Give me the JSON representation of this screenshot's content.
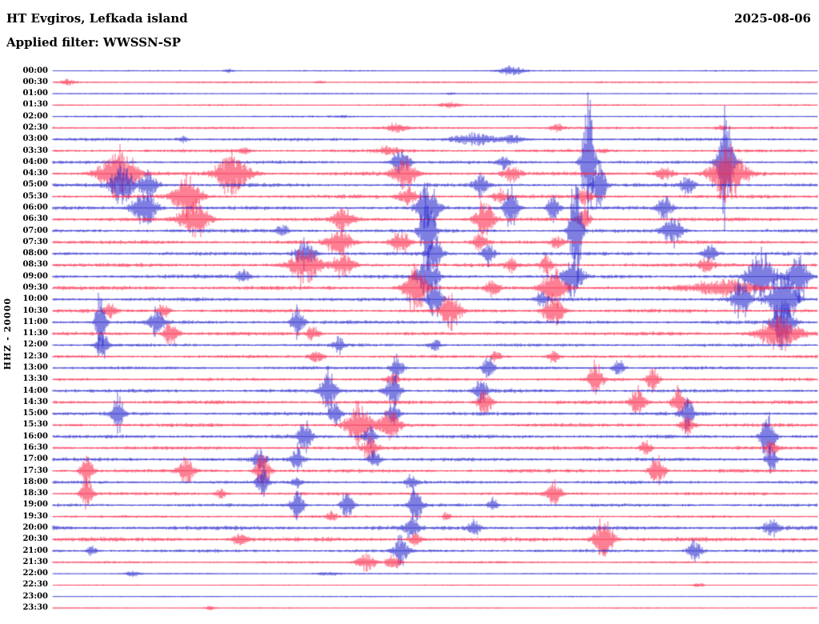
{
  "header": {
    "station": "HT Evgiros, Lefkada island",
    "date": "2025-08-06",
    "filter_label": "Applied filter: WWSSN-SP"
  },
  "axis": {
    "left_label": "HHZ - 20000"
  },
  "chart_data": {
    "type": "line",
    "subtype": "helicorder-seismogram",
    "title": "HT Evgiros, Lefkada island",
    "date": "2025-08-06",
    "filter": "WWSSN-SP",
    "ylabel": "HHZ - 20000",
    "row_interval_minutes": 30,
    "legend": "none",
    "grid": false,
    "colors": {
      "blue": "#2222cc",
      "red": "#fa2345"
    },
    "rows": [
      {
        "time": "00:00",
        "color": "blue",
        "amp": 1.0,
        "events": [
          {
            "x": 0.6,
            "w": 10,
            "a": 8
          },
          {
            "x": 0.23,
            "w": 4,
            "a": 3
          }
        ]
      },
      {
        "time": "00:30",
        "color": "red",
        "amp": 1.2,
        "events": [
          {
            "x": 0.02,
            "w": 6,
            "a": 4
          },
          {
            "x": 0.35,
            "w": 4,
            "a": 2
          }
        ]
      },
      {
        "time": "01:00",
        "color": "blue",
        "amp": 1.0,
        "events": [
          {
            "x": 0.52,
            "w": 4,
            "a": 2
          }
        ]
      },
      {
        "time": "01:30",
        "color": "red",
        "amp": 1.2,
        "events": [
          {
            "x": 0.52,
            "w": 8,
            "a": 5
          }
        ]
      },
      {
        "time": "02:00",
        "color": "blue",
        "amp": 1.3,
        "events": [
          {
            "x": 0.38,
            "w": 4,
            "a": 2
          }
        ]
      },
      {
        "time": "02:30",
        "color": "red",
        "amp": 1.8,
        "events": [
          {
            "x": 0.45,
            "w": 8,
            "a": 7
          },
          {
            "x": 0.66,
            "w": 6,
            "a": 5
          },
          {
            "x": 0.875,
            "w": 6,
            "a": 4
          }
        ]
      },
      {
        "time": "03:00",
        "color": "blue",
        "amp": 2.2,
        "events": [
          {
            "x": 0.55,
            "w": 18,
            "a": 8
          },
          {
            "x": 0.17,
            "w": 5,
            "a": 4
          },
          {
            "x": 0.6,
            "w": 8,
            "a": 6
          }
        ]
      },
      {
        "time": "03:30",
        "color": "red",
        "amp": 2.2,
        "events": [
          {
            "x": 0.44,
            "w": 10,
            "a": 6
          },
          {
            "x": 0.25,
            "w": 6,
            "a": 4
          },
          {
            "x": 0.72,
            "w": 4,
            "a": 3
          }
        ]
      },
      {
        "time": "04:00",
        "color": "blue",
        "amp": 2.2,
        "events": [
          {
            "x": 0.7,
            "w": 5,
            "a": 105
          },
          {
            "x": 0.88,
            "w": 6,
            "a": 95
          },
          {
            "x": 0.455,
            "w": 8,
            "a": 18
          },
          {
            "x": 0.59,
            "w": 5,
            "a": 12
          }
        ]
      },
      {
        "time": "04:30",
        "color": "red",
        "amp": 2.6,
        "events": [
          {
            "x": 0.085,
            "w": 16,
            "a": 38
          },
          {
            "x": 0.235,
            "w": 14,
            "a": 34
          },
          {
            "x": 0.46,
            "w": 10,
            "a": 24
          },
          {
            "x": 0.883,
            "w": 14,
            "a": 42
          },
          {
            "x": 0.6,
            "w": 8,
            "a": 12
          },
          {
            "x": 0.8,
            "w": 8,
            "a": 10
          }
        ]
      },
      {
        "time": "05:00",
        "color": "blue",
        "amp": 2.6,
        "events": [
          {
            "x": 0.09,
            "w": 10,
            "a": 28
          },
          {
            "x": 0.125,
            "w": 8,
            "a": 22
          },
          {
            "x": 0.56,
            "w": 6,
            "a": 18
          },
          {
            "x": 0.715,
            "w": 5,
            "a": 40
          },
          {
            "x": 0.83,
            "w": 6,
            "a": 14
          }
        ]
      },
      {
        "time": "05:30",
        "color": "red",
        "amp": 2.6,
        "events": [
          {
            "x": 0.175,
            "w": 12,
            "a": 30
          },
          {
            "x": 0.465,
            "w": 8,
            "a": 14
          },
          {
            "x": 0.585,
            "w": 6,
            "a": 10
          },
          {
            "x": 0.695,
            "w": 6,
            "a": 12
          }
        ]
      },
      {
        "time": "06:00",
        "color": "blue",
        "amp": 2.6,
        "events": [
          {
            "x": 0.12,
            "w": 10,
            "a": 30
          },
          {
            "x": 0.49,
            "w": 8,
            "a": 45
          },
          {
            "x": 0.6,
            "w": 6,
            "a": 35
          },
          {
            "x": 0.655,
            "w": 5,
            "a": 25
          },
          {
            "x": 0.8,
            "w": 6,
            "a": 18
          }
        ]
      },
      {
        "time": "06:30",
        "color": "red",
        "amp": 2.6,
        "events": [
          {
            "x": 0.185,
            "w": 12,
            "a": 30
          },
          {
            "x": 0.38,
            "w": 8,
            "a": 20
          },
          {
            "x": 0.565,
            "w": 8,
            "a": 28
          },
          {
            "x": 0.695,
            "w": 5,
            "a": 20
          }
        ]
      },
      {
        "time": "07:00",
        "color": "blue",
        "amp": 2.6,
        "events": [
          {
            "x": 0.49,
            "w": 6,
            "a": 55
          },
          {
            "x": 0.684,
            "w": 5,
            "a": 90
          },
          {
            "x": 0.81,
            "w": 8,
            "a": 22
          },
          {
            "x": 0.3,
            "w": 5,
            "a": 10
          }
        ]
      },
      {
        "time": "07:30",
        "color": "red",
        "amp": 2.6,
        "events": [
          {
            "x": 0.375,
            "w": 10,
            "a": 22
          },
          {
            "x": 0.455,
            "w": 8,
            "a": 18
          },
          {
            "x": 0.56,
            "w": 6,
            "a": 14
          },
          {
            "x": 0.66,
            "w": 5,
            "a": 10
          }
        ]
      },
      {
        "time": "08:00",
        "color": "blue",
        "amp": 2.6,
        "events": [
          {
            "x": 0.33,
            "w": 8,
            "a": 25
          },
          {
            "x": 0.5,
            "w": 6,
            "a": 30
          },
          {
            "x": 0.57,
            "w": 5,
            "a": 20
          },
          {
            "x": 0.86,
            "w": 6,
            "a": 15
          }
        ]
      },
      {
        "time": "08:30",
        "color": "red",
        "amp": 2.8,
        "events": [
          {
            "x": 0.33,
            "w": 12,
            "a": 28
          },
          {
            "x": 0.38,
            "w": 8,
            "a": 22
          },
          {
            "x": 0.6,
            "w": 5,
            "a": 12
          },
          {
            "x": 0.645,
            "w": 5,
            "a": 14
          },
          {
            "x": 0.855,
            "w": 6,
            "a": 12
          }
        ]
      },
      {
        "time": "09:00",
        "color": "blue",
        "amp": 2.8,
        "events": [
          {
            "x": 0.49,
            "w": 8,
            "a": 40
          },
          {
            "x": 0.68,
            "w": 8,
            "a": 35
          },
          {
            "x": 0.925,
            "w": 10,
            "a": 45
          },
          {
            "x": 0.975,
            "w": 8,
            "a": 40
          },
          {
            "x": 0.25,
            "w": 5,
            "a": 10
          }
        ]
      },
      {
        "time": "09:30",
        "color": "red",
        "amp": 2.8,
        "events": [
          {
            "x": 0.475,
            "w": 10,
            "a": 35
          },
          {
            "x": 0.655,
            "w": 10,
            "a": 30
          },
          {
            "x": 0.88,
            "w": 30,
            "a": 12
          },
          {
            "x": 0.575,
            "w": 6,
            "a": 12
          }
        ]
      },
      {
        "time": "10:00",
        "color": "blue",
        "amp": 2.6,
        "events": [
          {
            "x": 0.5,
            "w": 6,
            "a": 30
          },
          {
            "x": 0.9,
            "w": 8,
            "a": 30
          },
          {
            "x": 0.955,
            "w": 10,
            "a": 50
          },
          {
            "x": 0.64,
            "w": 5,
            "a": 12
          }
        ]
      },
      {
        "time": "10:30",
        "color": "red",
        "amp": 2.6,
        "events": [
          {
            "x": 0.52,
            "w": 8,
            "a": 30
          },
          {
            "x": 0.655,
            "w": 8,
            "a": 28
          },
          {
            "x": 0.075,
            "w": 5,
            "a": 10
          },
          {
            "x": 0.145,
            "w": 5,
            "a": 12
          }
        ]
      },
      {
        "time": "11:00",
        "color": "blue",
        "amp": 2.6,
        "events": [
          {
            "x": 0.063,
            "w": 4,
            "a": 55
          },
          {
            "x": 0.135,
            "w": 6,
            "a": 20
          },
          {
            "x": 0.32,
            "w": 5,
            "a": 25
          },
          {
            "x": 0.955,
            "w": 8,
            "a": 40
          }
        ]
      },
      {
        "time": "11:30",
        "color": "red",
        "amp": 2.6,
        "events": [
          {
            "x": 0.155,
            "w": 6,
            "a": 18
          },
          {
            "x": 0.34,
            "w": 5,
            "a": 12
          },
          {
            "x": 0.95,
            "w": 18,
            "a": 25
          }
        ]
      },
      {
        "time": "12:00",
        "color": "blue",
        "amp": 2.2,
        "events": [
          {
            "x": 0.065,
            "w": 5,
            "a": 25
          },
          {
            "x": 0.375,
            "w": 5,
            "a": 12
          },
          {
            "x": 0.5,
            "w": 5,
            "a": 10
          }
        ]
      },
      {
        "time": "12:30",
        "color": "red",
        "amp": 2.2,
        "events": [
          {
            "x": 0.345,
            "w": 6,
            "a": 10
          },
          {
            "x": 0.58,
            "w": 5,
            "a": 8
          },
          {
            "x": 0.655,
            "w": 5,
            "a": 10
          }
        ]
      },
      {
        "time": "13:00",
        "color": "blue",
        "amp": 2.2,
        "events": [
          {
            "x": 0.45,
            "w": 5,
            "a": 20
          },
          {
            "x": 0.57,
            "w": 5,
            "a": 18
          },
          {
            "x": 0.74,
            "w": 5,
            "a": 12
          }
        ]
      },
      {
        "time": "13:30",
        "color": "red",
        "amp": 2.2,
        "events": [
          {
            "x": 0.71,
            "w": 6,
            "a": 25
          },
          {
            "x": 0.785,
            "w": 5,
            "a": 18
          },
          {
            "x": 0.445,
            "w": 5,
            "a": 10
          }
        ]
      },
      {
        "time": "14:00",
        "color": "blue",
        "amp": 2.6,
        "events": [
          {
            "x": 0.36,
            "w": 6,
            "a": 35
          },
          {
            "x": 0.445,
            "w": 6,
            "a": 30
          },
          {
            "x": 0.56,
            "w": 5,
            "a": 20
          }
        ]
      },
      {
        "time": "14:30",
        "color": "red",
        "amp": 2.6,
        "events": [
          {
            "x": 0.565,
            "w": 6,
            "a": 18
          },
          {
            "x": 0.765,
            "w": 6,
            "a": 22
          },
          {
            "x": 0.82,
            "w": 6,
            "a": 25
          }
        ]
      },
      {
        "time": "15:00",
        "color": "blue",
        "amp": 2.6,
        "events": [
          {
            "x": 0.085,
            "w": 5,
            "a": 28
          },
          {
            "x": 0.37,
            "w": 5,
            "a": 18
          },
          {
            "x": 0.445,
            "w": 5,
            "a": 20
          },
          {
            "x": 0.83,
            "w": 5,
            "a": 30
          }
        ]
      },
      {
        "time": "15:30",
        "color": "red",
        "amp": 2.6,
        "events": [
          {
            "x": 0.4,
            "w": 10,
            "a": 30
          },
          {
            "x": 0.44,
            "w": 8,
            "a": 28
          },
          {
            "x": 0.83,
            "w": 6,
            "a": 15
          }
        ]
      },
      {
        "time": "16:00",
        "color": "blue",
        "amp": 2.6,
        "events": [
          {
            "x": 0.33,
            "w": 6,
            "a": 25
          },
          {
            "x": 0.415,
            "w": 5,
            "a": 20
          },
          {
            "x": 0.935,
            "w": 6,
            "a": 35
          }
        ]
      },
      {
        "time": "16:30",
        "color": "red",
        "amp": 2.6,
        "events": [
          {
            "x": 0.415,
            "w": 6,
            "a": 20
          },
          {
            "x": 0.775,
            "w": 5,
            "a": 12
          },
          {
            "x": 0.94,
            "w": 5,
            "a": 15
          }
        ]
      },
      {
        "time": "17:00",
        "color": "blue",
        "amp": 2.6,
        "events": [
          {
            "x": 0.27,
            "w": 5,
            "a": 18
          },
          {
            "x": 0.32,
            "w": 5,
            "a": 22
          },
          {
            "x": 0.42,
            "w": 5,
            "a": 15
          },
          {
            "x": 0.94,
            "w": 5,
            "a": 20
          }
        ]
      },
      {
        "time": "17:30",
        "color": "red",
        "amp": 2.6,
        "events": [
          {
            "x": 0.175,
            "w": 6,
            "a": 22
          },
          {
            "x": 0.275,
            "w": 6,
            "a": 28
          },
          {
            "x": 0.79,
            "w": 6,
            "a": 25
          },
          {
            "x": 0.045,
            "w": 5,
            "a": 30
          }
        ]
      },
      {
        "time": "18:00",
        "color": "blue",
        "amp": 2.2,
        "events": [
          {
            "x": 0.275,
            "w": 5,
            "a": 22
          },
          {
            "x": 0.47,
            "w": 5,
            "a": 12
          },
          {
            "x": 0.32,
            "w": 4,
            "a": 10
          }
        ]
      },
      {
        "time": "18:30",
        "color": "red",
        "amp": 2.2,
        "events": [
          {
            "x": 0.045,
            "w": 5,
            "a": 25
          },
          {
            "x": 0.655,
            "w": 6,
            "a": 20
          },
          {
            "x": 0.22,
            "w": 4,
            "a": 8
          }
        ]
      },
      {
        "time": "19:00",
        "color": "blue",
        "amp": 2.2,
        "events": [
          {
            "x": 0.32,
            "w": 5,
            "a": 28
          },
          {
            "x": 0.385,
            "w": 5,
            "a": 25
          },
          {
            "x": 0.475,
            "w": 5,
            "a": 30
          },
          {
            "x": 0.575,
            "w": 4,
            "a": 12
          }
        ]
      },
      {
        "time": "19:30",
        "color": "red",
        "amp": 1.8,
        "events": [
          {
            "x": 0.365,
            "w": 4,
            "a": 8
          },
          {
            "x": 0.515,
            "w": 4,
            "a": 6
          }
        ]
      },
      {
        "time": "20:00",
        "color": "blue",
        "amp": 3.0,
        "events": [
          {
            "x": 0.47,
            "w": 6,
            "a": 18
          },
          {
            "x": 0.55,
            "w": 5,
            "a": 14
          },
          {
            "x": 0.94,
            "w": 6,
            "a": 12
          }
        ]
      },
      {
        "time": "20:30",
        "color": "red",
        "amp": 3.0,
        "events": [
          {
            "x": 0.72,
            "w": 8,
            "a": 30
          },
          {
            "x": 0.245,
            "w": 6,
            "a": 12
          },
          {
            "x": 0.475,
            "w": 5,
            "a": 10
          }
        ]
      },
      {
        "time": "21:00",
        "color": "blue",
        "amp": 2.2,
        "events": [
          {
            "x": 0.455,
            "w": 6,
            "a": 25
          },
          {
            "x": 0.84,
            "w": 6,
            "a": 18
          },
          {
            "x": 0.05,
            "w": 4,
            "a": 8
          }
        ]
      },
      {
        "time": "21:30",
        "color": "red",
        "amp": 1.5,
        "events": [
          {
            "x": 0.41,
            "w": 8,
            "a": 15
          },
          {
            "x": 0.445,
            "w": 6,
            "a": 12
          }
        ]
      },
      {
        "time": "22:00",
        "color": "blue",
        "amp": 1.0,
        "events": [
          {
            "x": 0.105,
            "w": 6,
            "a": 5
          },
          {
            "x": 0.36,
            "w": 10,
            "a": 3
          }
        ]
      },
      {
        "time": "22:30",
        "color": "red",
        "amp": 0.8,
        "events": [
          {
            "x": 0.845,
            "w": 4,
            "a": 4
          }
        ]
      },
      {
        "time": "23:00",
        "color": "blue",
        "amp": 0.8,
        "events": []
      },
      {
        "time": "23:30",
        "color": "red",
        "amp": 0.8,
        "events": [
          {
            "x": 0.205,
            "w": 4,
            "a": 3
          }
        ]
      }
    ]
  }
}
